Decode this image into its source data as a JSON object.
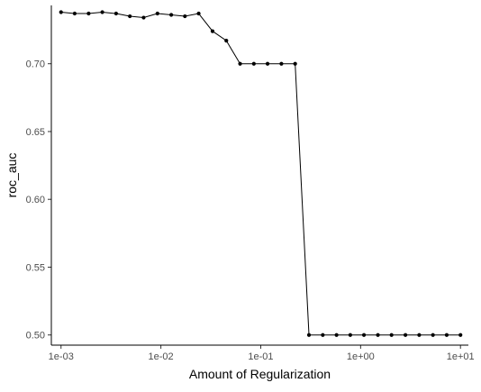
{
  "chart_data": {
    "type": "line",
    "title": "",
    "xlabel": "Amount of Regularization",
    "ylabel": "roc_auc",
    "x_scale": "log10",
    "xlim": [
      0.0008,
      12
    ],
    "ylim": [
      0.4925,
      0.743
    ],
    "grid": false,
    "legend": "none",
    "x_ticks": [
      0.001,
      0.01,
      0.1,
      1,
      10
    ],
    "x_tick_labels": [
      "1e-03",
      "1e-02",
      "1e-01",
      "1e+00",
      "1e+01"
    ],
    "y_ticks": [
      0.5,
      0.55,
      0.6,
      0.65,
      0.7
    ],
    "y_tick_labels": [
      "0.50",
      "0.55",
      "0.60",
      "0.65",
      "0.70"
    ],
    "colors": {
      "line": "#000000",
      "point": "#000000",
      "axis": "#000000",
      "tick_text": "#4d4d4d"
    },
    "series": [
      {
        "x": [
          0.001,
          0.00137,
          0.00189,
          0.00259,
          0.00356,
          0.00489,
          0.00672,
          0.00924,
          0.0127,
          0.0174,
          0.0239,
          0.0329,
          0.0452,
          0.0621,
          0.0853,
          0.117,
          0.161,
          0.221,
          0.304,
          0.418,
          0.574,
          0.788,
          1.08,
          1.49,
          2.04,
          2.81,
          3.86,
          5.3,
          7.28,
          10
        ],
        "y": [
          0.738,
          0.737,
          0.737,
          0.738,
          0.737,
          0.735,
          0.734,
          0.737,
          0.736,
          0.735,
          0.737,
          0.724,
          0.717,
          0.7,
          0.7,
          0.7,
          0.7,
          0.7,
          0.5,
          0.5,
          0.5,
          0.5,
          0.5,
          0.5,
          0.5,
          0.5,
          0.5,
          0.5,
          0.5,
          0.5
        ]
      }
    ]
  }
}
